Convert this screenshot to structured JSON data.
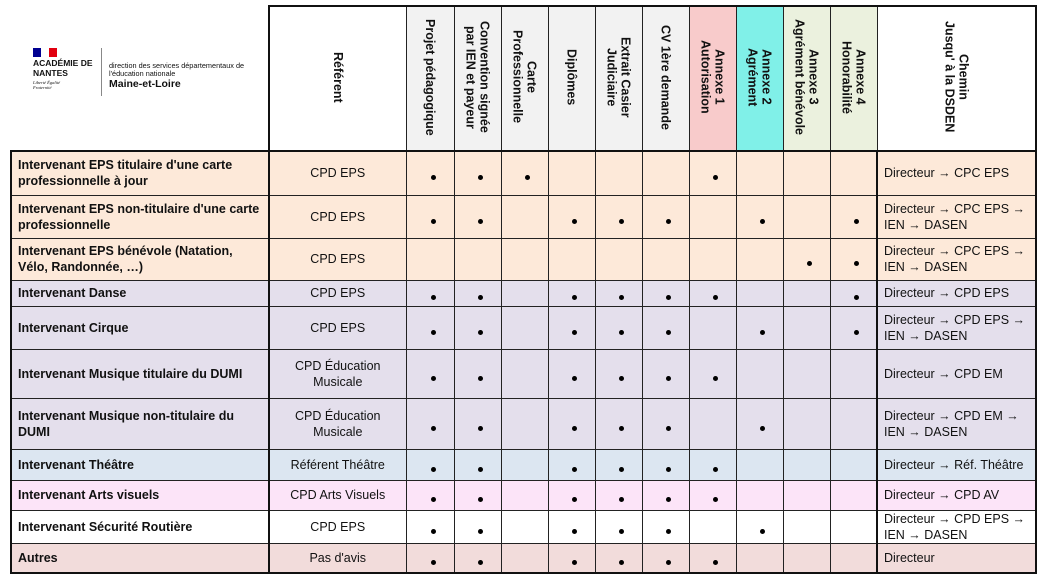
{
  "logo": {
    "academie": "ACADÉMIE DE NANTES",
    "devise": "Liberté Égalité Fraternité",
    "service": "direction des services départementaux de l'éducation nationale",
    "departement": "Maine-et-Loire",
    "colors": {
      "blue": "#000091",
      "red": "#e1000f"
    }
  },
  "headers": {
    "referent": "Référent",
    "projet": "Projet pédagogique",
    "convention_1": "Convention signée",
    "convention_2": "par IEN et payeur",
    "carte_1": "Carte",
    "carte_2": "Professionnelle",
    "diplomes": "Diplômes",
    "extrait_1": "Extrait Casier",
    "extrait_2": "Judiciaire",
    "cv": "CV 1ère demande",
    "annexe1_1": "Annexe 1",
    "annexe1_2": "Autorisation",
    "annexe2_1": "Annexe 2",
    "annexe2_2": "Agrément",
    "annexe3_1": "Annexe 3",
    "annexe3_2": "Agrément bénévole",
    "annexe4_1": "Annexe 4",
    "annexe4_2": "Honorabilité",
    "chemin_1": "Chemin",
    "chemin_2": "Jusqu'  à la DSDEN"
  },
  "columns": [
    "projet",
    "convention",
    "carte",
    "diplomes",
    "extrait",
    "cv",
    "annexe1",
    "annexe2",
    "annexe3",
    "annexe4"
  ],
  "rows": [
    {
      "label": "Intervenant EPS titulaire d'une carte professionnelle à jour",
      "referent": "CPD EPS",
      "marks": [
        1,
        1,
        1,
        0,
        0,
        0,
        1,
        0,
        0,
        0
      ],
      "chemin": "Directeur → CPC EPS",
      "color": "#fde9d9"
    },
    {
      "label": "Intervenant EPS non-titulaire d'une carte professionnelle",
      "referent": "CPD EPS",
      "marks": [
        1,
        1,
        0,
        1,
        1,
        1,
        0,
        1,
        0,
        1
      ],
      "chemin": "Directeur → CPC EPS → IEN → DASEN",
      "color": "#fde9d9"
    },
    {
      "label": "Intervenant EPS bénévole (Natation, Vélo, Randonnée, …)",
      "referent": "CPD EPS",
      "marks": [
        0,
        0,
        0,
        0,
        0,
        0,
        0,
        0,
        1,
        1
      ],
      "chemin": "Directeur → CPC EPS → IEN → DASEN",
      "color": "#fde9d9"
    },
    {
      "label": "Intervenant Danse",
      "referent": "CPD EPS",
      "marks": [
        1,
        1,
        0,
        1,
        1,
        1,
        1,
        0,
        0,
        1
      ],
      "chemin": "Directeur → CPD EPS",
      "color": "#e4dfec"
    },
    {
      "label": "Intervenant Cirque",
      "referent": "CPD EPS",
      "marks": [
        1,
        1,
        0,
        1,
        1,
        1,
        0,
        1,
        0,
        1
      ],
      "chemin": "Directeur → CPD EPS → IEN → DASEN",
      "color": "#e4dfec"
    },
    {
      "label": "Intervenant Musique titulaire du DUMI",
      "referent": "CPD Éducation Musicale",
      "marks": [
        1,
        1,
        0,
        1,
        1,
        1,
        1,
        0,
        0,
        0
      ],
      "chemin": "Directeur → CPD EM",
      "color": "#e4dfec"
    },
    {
      "label": "Intervenant Musique non-titulaire du DUMI",
      "referent": "CPD Éducation Musicale",
      "marks": [
        1,
        1,
        0,
        1,
        1,
        1,
        0,
        1,
        0,
        0
      ],
      "chemin": "Directeur → CPD EM → IEN → DASEN",
      "color": "#e4dfec"
    },
    {
      "label": "Intervenant Théâtre",
      "referent": "Référent Théâtre",
      "marks": [
        1,
        1,
        0,
        1,
        1,
        1,
        1,
        0,
        0,
        0
      ],
      "chemin": "Directeur → Réf. Théâtre",
      "color": "#dce6f1"
    },
    {
      "label": "Intervenant Arts visuels",
      "referent": "CPD Arts Visuels",
      "marks": [
        1,
        1,
        0,
        1,
        1,
        1,
        1,
        0,
        0,
        0
      ],
      "chemin": "Directeur → CPD AV",
      "color": "#fce4f8"
    },
    {
      "label": "Intervenant Sécurité Routière",
      "referent": "CPD EPS",
      "marks": [
        1,
        1,
        0,
        1,
        1,
        1,
        0,
        1,
        0,
        0
      ],
      "chemin": "Directeur → CPD EPS → IEN → DASEN",
      "color": "#ffffff"
    },
    {
      "label": "Autres",
      "referent": "Pas d'avis",
      "marks": [
        1,
        1,
        0,
        1,
        1,
        1,
        1,
        0,
        0,
        0
      ],
      "chemin": "Directeur",
      "color": "#f2dcdb"
    }
  ]
}
